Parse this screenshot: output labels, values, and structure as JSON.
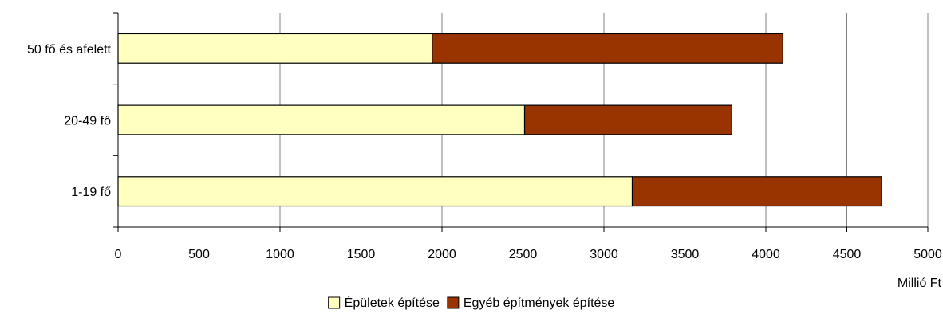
{
  "chart_data": {
    "type": "bar",
    "orientation": "horizontal",
    "stacked": true,
    "categories": [
      "50 fő és afelett",
      "20-49 fő",
      "1-19 fő"
    ],
    "series": [
      {
        "name": "Épületek építése",
        "values": [
          1940,
          2510,
          3175
        ],
        "color": "#ffffc0"
      },
      {
        "name": "Egyéb építmények építése",
        "values": [
          2165,
          1280,
          1540
        ],
        "color": "#993300"
      }
    ],
    "xlim": [
      0,
      5000
    ],
    "xticks": [
      "0",
      "500",
      "1000",
      "1500",
      "2000",
      "2500",
      "3000",
      "3500",
      "4000",
      "4500",
      "5000"
    ],
    "xlabel": "Millió Ft",
    "grid": "vertical",
    "legend_position": "bottom",
    "colors": {
      "gridline": "#808080",
      "bar_border": "#000000"
    }
  }
}
